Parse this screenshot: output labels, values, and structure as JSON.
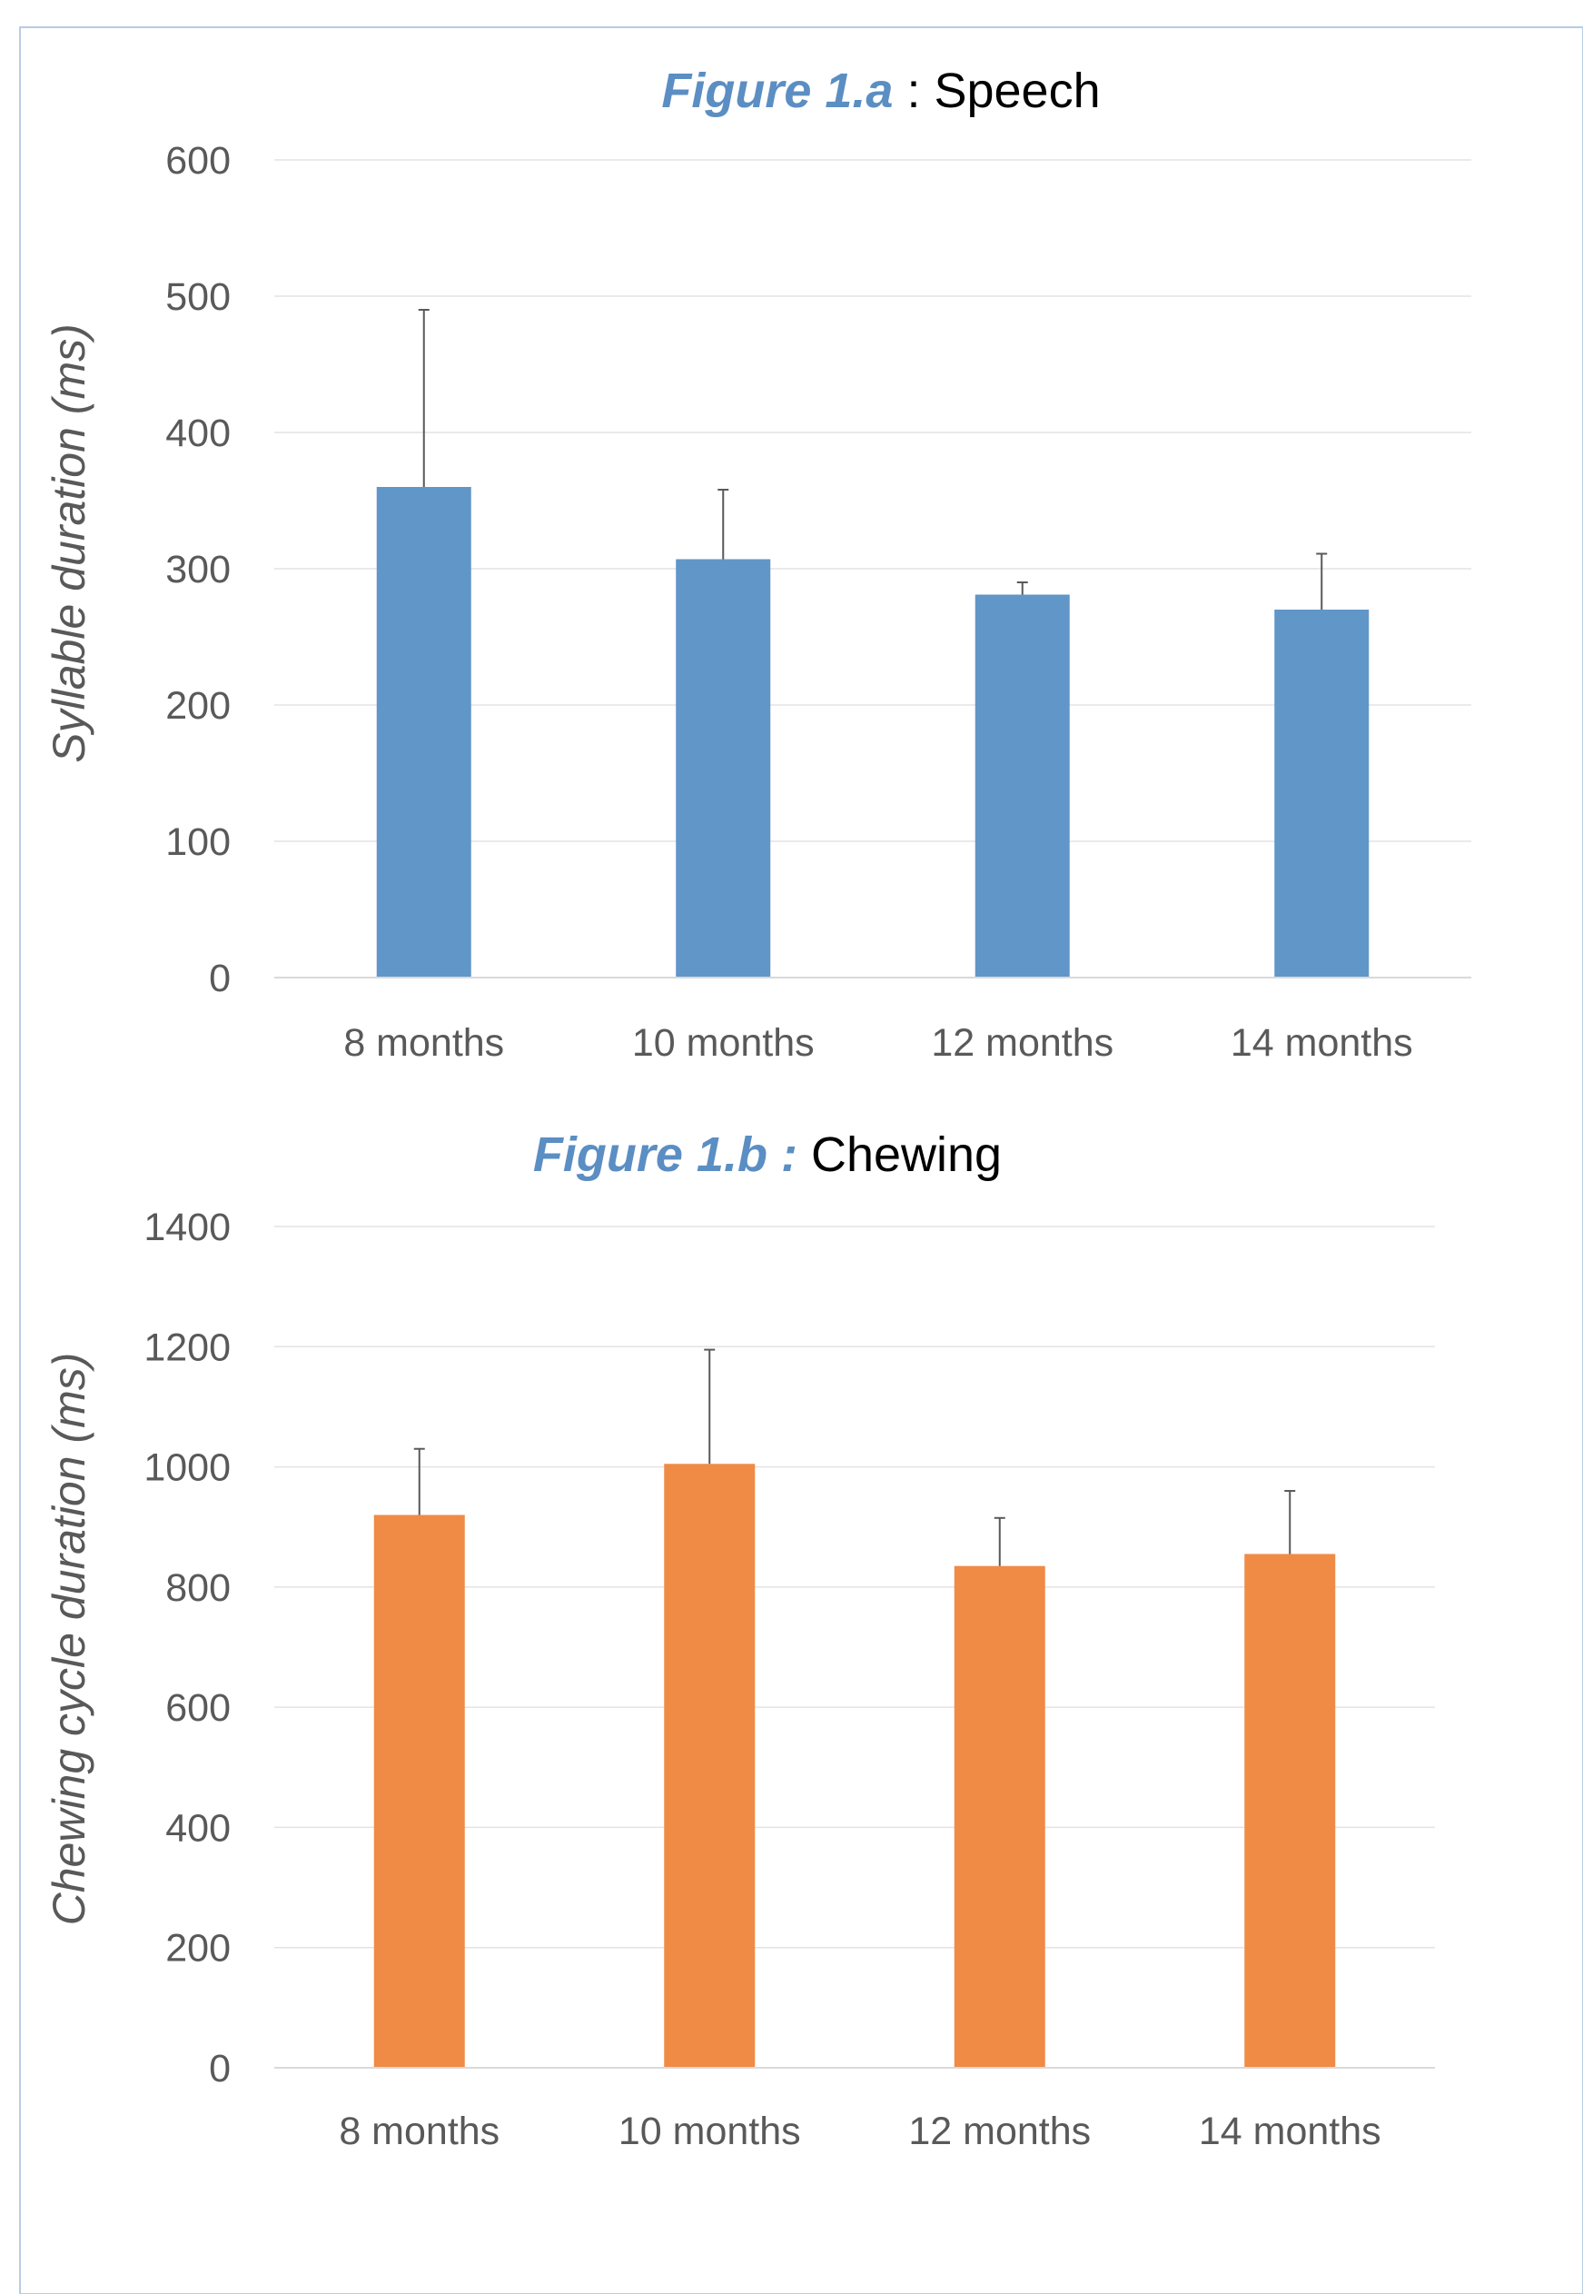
{
  "frame_color": "#b8cce4",
  "chart_data": [
    {
      "type": "bar",
      "title": {
        "prefix": "Figure 1.a",
        "rest": " : Speech"
      },
      "ylabel": "Syllable duration (ms)",
      "xlabel": "",
      "categories": [
        "8 months",
        "10 months",
        "12 months",
        "14 months"
      ],
      "values": [
        360,
        307,
        281,
        270
      ],
      "error_upper": [
        490,
        358,
        290,
        311
      ],
      "ylim": [
        0,
        600
      ],
      "yticks": [
        0,
        100,
        200,
        300,
        400,
        500,
        600
      ],
      "grid": true,
      "legend": "none",
      "color": "#6096c8"
    },
    {
      "type": "bar",
      "title": {
        "prefix": "Figure 1.b :",
        "rest": " Chewing"
      },
      "ylabel": "Chewing cycle duration (ms)",
      "xlabel": "",
      "categories": [
        "8 months",
        "10 months",
        "12 months",
        "14 months"
      ],
      "values": [
        920,
        1005,
        835,
        855
      ],
      "error_upper": [
        1030,
        1195,
        915,
        960
      ],
      "ylim": [
        0,
        1400
      ],
      "yticks": [
        0,
        200,
        400,
        600,
        800,
        1000,
        1200,
        1400
      ],
      "grid": true,
      "legend": "none",
      "color": "#ef8b45"
    }
  ]
}
